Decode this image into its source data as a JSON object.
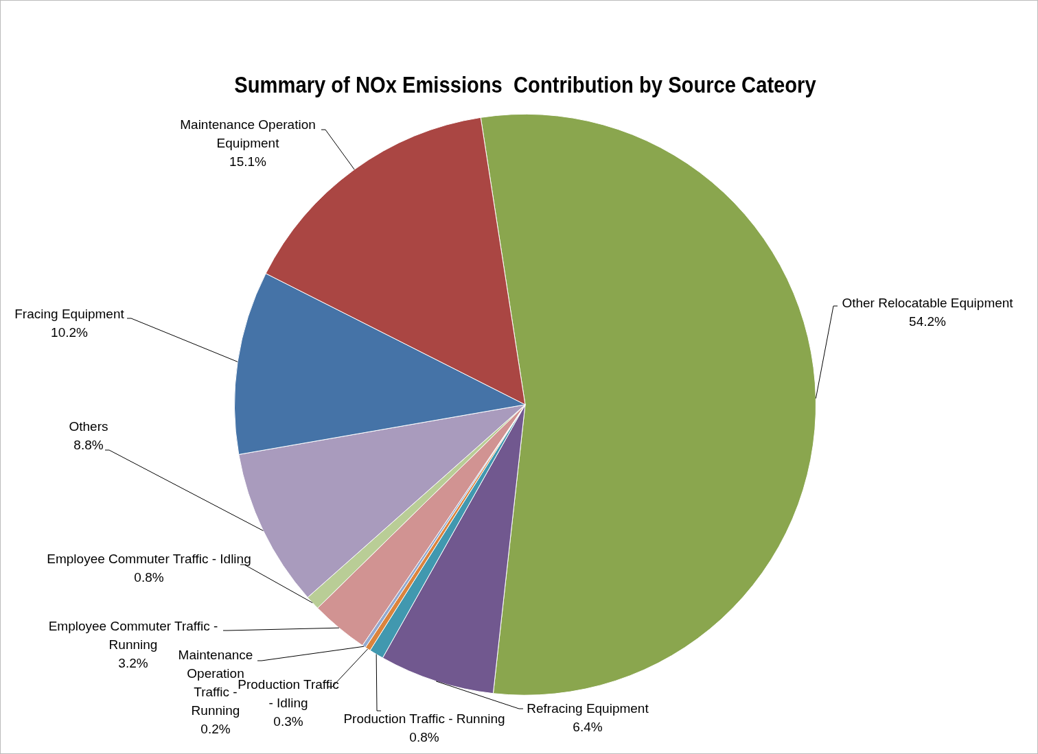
{
  "chart_data": {
    "type": "pie",
    "title": "Summary of NOx Emissions  Contribution by Source Cateory",
    "categories": [
      "Other Relocatable Equipment",
      "Refracing Equipment",
      "Production Traffic - Running",
      "Production Traffic - Idling",
      "Maintenance Operation Traffic - Running",
      "Employee Commuter Traffic - Running",
      "Employee Commuter Traffic - Idling",
      "Others",
      "Fracing Equipment",
      "Maintenance Operation Equipment"
    ],
    "values": [
      54.2,
      6.4,
      0.8,
      0.3,
      0.2,
      3.2,
      0.8,
      8.8,
      10.2,
      15.1
    ],
    "value_labels": [
      "54.2%",
      "6.4%",
      "0.8%",
      "0.3%",
      "0.2%",
      "3.2%",
      "0.8%",
      "8.8%",
      "10.2%",
      "15.1%"
    ],
    "colors": [
      "#8aa64e",
      "#71588f",
      "#4198af",
      "#db843d",
      "#93a9cf",
      "#d19392",
      "#b9cd96",
      "#a99bbd",
      "#4573a7",
      "#aa4643"
    ]
  }
}
